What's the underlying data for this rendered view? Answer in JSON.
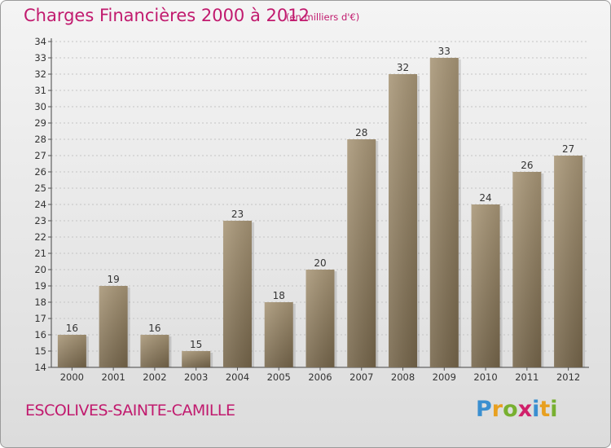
{
  "header": {
    "title": "Charges Financières 2000 à 2012",
    "unit": "(en milliers d'€)"
  },
  "footer": {
    "commune": "ESCOLIVES-SAINTE-CAMILLE",
    "brand_letters": [
      "P",
      "r",
      "o",
      "x",
      "i",
      "t",
      "i"
    ],
    "brand_colors": [
      "#3a8fd0",
      "#e8a020",
      "#78b030",
      "#d0206a",
      "#3a8fd0",
      "#e8a020",
      "#78b030"
    ]
  },
  "chart_data": {
    "type": "bar",
    "categories": [
      "2000",
      "2001",
      "2002",
      "2003",
      "2004",
      "2005",
      "2006",
      "2007",
      "2008",
      "2009",
      "2010",
      "2011",
      "2012"
    ],
    "values": [
      16,
      19,
      16,
      15,
      23,
      18,
      20,
      28,
      32,
      33,
      24,
      26,
      27
    ],
    "ylim": [
      14,
      34
    ],
    "ytick_step": 1,
    "grid": "horizontal dashed",
    "bar_color": "#8f7c5e"
  }
}
